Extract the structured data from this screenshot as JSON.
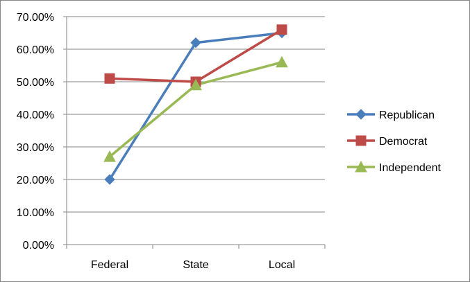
{
  "chart_data": {
    "type": "line",
    "categories": [
      "Federal",
      "State",
      "Local"
    ],
    "series": [
      {
        "name": "Republican",
        "values": [
          20,
          62,
          65
        ],
        "color": "#4A7EBB",
        "marker": "diamond"
      },
      {
        "name": "Democrat",
        "values": [
          51,
          50,
          66
        ],
        "color": "#BE4B48",
        "marker": "square"
      },
      {
        "name": "Independent",
        "values": [
          27,
          49,
          56
        ],
        "color": "#98B954",
        "marker": "triangle"
      }
    ],
    "ylim": [
      0,
      70
    ],
    "yticks": [
      "0.00%",
      "10.00%",
      "20.00%",
      "30.00%",
      "40.00%",
      "50.00%",
      "60.00%",
      "70.00%"
    ],
    "grid": true,
    "legend_position": "right",
    "title": "",
    "xlabel": "",
    "ylabel": ""
  }
}
